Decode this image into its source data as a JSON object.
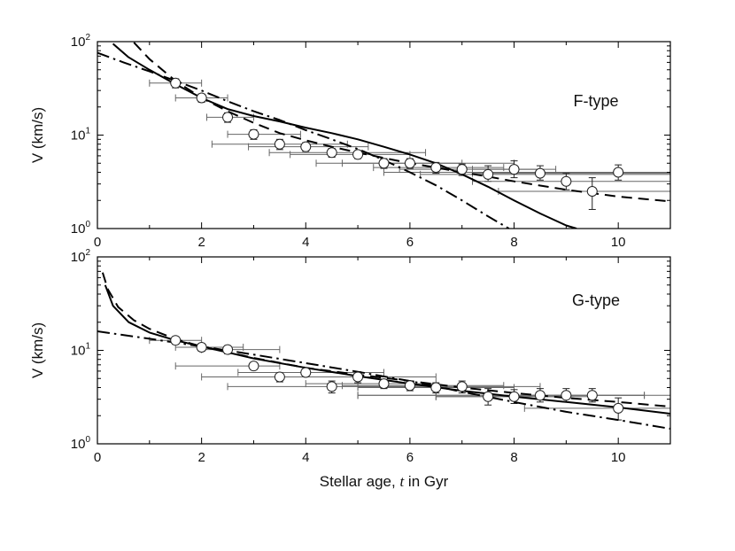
{
  "chart_data": [
    {
      "type": "scatter",
      "panel_label": "F-type",
      "xlabel": "",
      "ylabel": "V (km/s)",
      "xlim": [
        0,
        11
      ],
      "ylim": [
        1,
        100
      ],
      "yscale": "log",
      "x_ticks": [
        "0",
        "2",
        "4",
        "6",
        "8",
        "10"
      ],
      "y_ticks": [
        {
          "base": "10",
          "exp": "0"
        },
        {
          "base": "10",
          "exp": "1"
        },
        {
          "base": "10",
          "exp": "2"
        }
      ],
      "points": [
        {
          "x": 1.5,
          "y": 36,
          "xerr": [
            0.5,
            0.5
          ],
          "yerr": [
            4,
            4
          ]
        },
        {
          "x": 2.0,
          "y": 25,
          "xerr": [
            0.5,
            0.5
          ],
          "yerr": [
            2.5,
            2.5
          ]
        },
        {
          "x": 2.5,
          "y": 15.5,
          "xerr": [
            0.4,
            0.5
          ],
          "yerr": [
            1.8,
            1.8
          ]
        },
        {
          "x": 3.0,
          "y": 10.2,
          "xerr": [
            0.5,
            0.9
          ],
          "yerr": [
            1.2,
            1.2
          ]
        },
        {
          "x": 3.5,
          "y": 8.0,
          "xerr": [
            1.3,
            1.3
          ],
          "yerr": [
            1.0,
            1.0
          ]
        },
        {
          "x": 4.0,
          "y": 7.5,
          "xerr": [
            1.1,
            1.2
          ],
          "yerr": [
            0.8,
            0.8
          ]
        },
        {
          "x": 4.5,
          "y": 6.5,
          "xerr": [
            1.2,
            1.8
          ],
          "yerr": [
            0.7,
            0.7
          ]
        },
        {
          "x": 5.0,
          "y": 6.2,
          "xerr": [
            1.3,
            1.0
          ],
          "yerr": [
            0.6,
            0.6
          ]
        },
        {
          "x": 5.5,
          "y": 5.0,
          "xerr": [
            0.8,
            1.5
          ],
          "yerr": [
            0.6,
            0.6
          ]
        },
        {
          "x": 6.0,
          "y": 5.0,
          "xerr": [
            1.8,
            2.0
          ],
          "yerr": [
            0.6,
            0.6
          ]
        },
        {
          "x": 6.5,
          "y": 4.5,
          "xerr": [
            1.2,
            1.3
          ],
          "yerr": [
            0.6,
            0.6
          ]
        },
        {
          "x": 7.0,
          "y": 4.3,
          "xerr": [
            1.2,
            1.5
          ],
          "yerr": [
            0.6,
            0.6
          ]
        },
        {
          "x": 7.5,
          "y": 3.8,
          "xerr": [
            1.3,
            3.5
          ],
          "yerr": [
            0.6,
            0.9
          ]
        },
        {
          "x": 8.0,
          "y": 4.3,
          "xerr": [
            0.8,
            0.8
          ],
          "yerr": [
            0.8,
            1.0
          ]
        },
        {
          "x": 8.5,
          "y": 3.9,
          "xerr": [
            1.3,
            2.5
          ],
          "yerr": [
            0.6,
            0.8
          ]
        },
        {
          "x": 9.0,
          "y": 3.2,
          "xerr": [
            1.8,
            2.0
          ],
          "yerr": [
            0.6,
            0.7
          ]
        },
        {
          "x": 9.5,
          "y": 2.5,
          "xerr": [
            1.8,
            1.5
          ],
          "yerr": [
            0.9,
            1.0
          ]
        },
        {
          "x": 10.0,
          "y": 4.0,
          "xerr": [
            4.5,
            1.0
          ],
          "yerr": [
            0.7,
            0.8
          ]
        }
      ],
      "curves": [
        {
          "style": "solid",
          "x": [
            0.3,
            0.6,
            1.0,
            1.5,
            2.0,
            2.5,
            3.0,
            3.5,
            4.0,
            4.5,
            5.0,
            5.5,
            6.0,
            6.5,
            7.0,
            7.5,
            8.0,
            8.5,
            9.0,
            9.2
          ],
          "y": [
            95,
            68,
            50,
            35,
            25,
            19,
            16,
            14,
            12,
            10.5,
            9,
            7.5,
            6.2,
            5.0,
            3.8,
            2.8,
            2.0,
            1.45,
            1.08,
            1.0
          ]
        },
        {
          "style": "dashed",
          "x": [
            0.7,
            1.0,
            1.5,
            2.0,
            2.5,
            3.0,
            3.5,
            4.0,
            4.5,
            5.0,
            5.5,
            6.0,
            6.5,
            7.0,
            7.5,
            8.0,
            9.0,
            10.0,
            11.0
          ],
          "y": [
            98,
            65,
            38,
            25,
            18,
            13.5,
            10.5,
            8.8,
            7.5,
            6.5,
            5.7,
            5.0,
            4.5,
            4.0,
            3.6,
            3.2,
            2.6,
            2.2,
            1.95
          ]
        },
        {
          "style": "dashdot",
          "x": [
            0.0,
            0.5,
            1.0,
            1.5,
            2.0,
            2.5,
            3.0,
            3.5,
            4.0,
            4.5,
            5.0,
            5.5,
            6.0,
            6.5,
            7.0,
            7.5,
            7.9
          ],
          "y": [
            76,
            60,
            48,
            38,
            30,
            23,
            18,
            14.5,
            11.3,
            9.0,
            7.1,
            5.4,
            4.0,
            2.9,
            2.0,
            1.35,
            1.0
          ]
        }
      ]
    },
    {
      "type": "scatter",
      "panel_label": "G-type",
      "xlabel": "Stellar age, t in Gyr",
      "xlabel_parts": [
        "Stellar age, ",
        "t",
        " in Gyr"
      ],
      "ylabel": "V (km/s)",
      "xlim": [
        0,
        11
      ],
      "ylim": [
        1,
        100
      ],
      "yscale": "log",
      "x_ticks": [
        "0",
        "2",
        "4",
        "6",
        "8",
        "10"
      ],
      "y_ticks": [
        {
          "base": "10",
          "exp": "0"
        },
        {
          "base": "10",
          "exp": "1"
        },
        {
          "base": "10",
          "exp": "2"
        }
      ],
      "points": [
        {
          "x": 1.5,
          "y": 12.8,
          "xerr": [
            0.5,
            0.5
          ],
          "yerr": [
            1.2,
            1.2
          ]
        },
        {
          "x": 2.0,
          "y": 10.8,
          "xerr": [
            0.5,
            0.8
          ],
          "yerr": [
            1.0,
            1.0
          ]
        },
        {
          "x": 2.5,
          "y": 10.2,
          "xerr": [
            0.5,
            1.0
          ],
          "yerr": [
            1.0,
            1.0
          ]
        },
        {
          "x": 3.0,
          "y": 6.8,
          "xerr": [
            1.5,
            0.5
          ],
          "yerr": [
            0.6,
            0.6
          ]
        },
        {
          "x": 3.5,
          "y": 5.2,
          "xerr": [
            1.5,
            1.5
          ],
          "yerr": [
            0.6,
            0.6
          ]
        },
        {
          "x": 4.0,
          "y": 5.8,
          "xerr": [
            1.3,
            1.5
          ],
          "yerr": [
            0.5,
            0.5
          ]
        },
        {
          "x": 4.5,
          "y": 4.1,
          "xerr": [
            2.0,
            1.5
          ],
          "yerr": [
            0.6,
            0.6
          ]
        },
        {
          "x": 5.0,
          "y": 5.2,
          "xerr": [
            1.5,
            1.5
          ],
          "yerr": [
            0.7,
            0.7
          ]
        },
        {
          "x": 5.5,
          "y": 4.4,
          "xerr": [
            1.5,
            1.0
          ],
          "yerr": [
            0.5,
            0.5
          ]
        },
        {
          "x": 6.0,
          "y": 4.2,
          "xerr": [
            1.3,
            1.8
          ],
          "yerr": [
            0.5,
            0.5
          ]
        },
        {
          "x": 6.5,
          "y": 4.0,
          "xerr": [
            1.5,
            1.5
          ],
          "yerr": [
            0.5,
            0.5
          ]
        },
        {
          "x": 7.0,
          "y": 4.1,
          "xerr": [
            2.0,
            1.5
          ],
          "yerr": [
            0.6,
            0.6
          ]
        },
        {
          "x": 7.5,
          "y": 3.2,
          "xerr": [
            1.0,
            1.5
          ],
          "yerr": [
            0.6,
            0.7
          ]
        },
        {
          "x": 8.0,
          "y": 3.2,
          "xerr": [
            1.5,
            1.5
          ],
          "yerr": [
            0.5,
            0.6
          ]
        },
        {
          "x": 8.5,
          "y": 3.3,
          "xerr": [
            3.5,
            2.0
          ],
          "yerr": [
            0.5,
            0.6
          ]
        },
        {
          "x": 9.0,
          "y": 3.3,
          "xerr": [
            1.0,
            1.5
          ],
          "yerr": [
            0.5,
            0.6
          ]
        },
        {
          "x": 9.5,
          "y": 3.3,
          "xerr": [
            4.5,
            1.5
          ],
          "yerr": [
            0.5,
            0.6
          ]
        },
        {
          "x": 10.0,
          "y": 2.4,
          "xerr": [
            1.8,
            1.5
          ],
          "yerr": [
            0.6,
            0.7
          ]
        }
      ],
      "curves": [
        {
          "style": "solid",
          "x": [
            0.15,
            0.3,
            0.6,
            1.0,
            1.5,
            2.0,
            3.0,
            4.0,
            5.0,
            6.0,
            7.0,
            8.0,
            9.0,
            10.0,
            11.0
          ],
          "y": [
            50,
            30,
            20,
            15.5,
            12.8,
            11,
            8.2,
            6.5,
            5.3,
            4.4,
            3.7,
            3.2,
            2.8,
            2.45,
            2.1
          ]
        },
        {
          "style": "dashed",
          "x": [
            0.1,
            0.2,
            0.4,
            0.7,
            1.0,
            1.5,
            2.0,
            3.0,
            4.0,
            5.0,
            6.0,
            7.0,
            8.0,
            9.0,
            10.0,
            11.0
          ],
          "y": [
            68,
            45,
            29,
            21,
            17,
            13.2,
            11,
            8.3,
            6.5,
            5.5,
            4.7,
            4.0,
            3.5,
            3.1,
            2.8,
            2.5
          ]
        },
        {
          "style": "dashdot",
          "x": [
            0.0,
            1.0,
            2.0,
            3.0,
            4.0,
            5.0,
            6.0,
            7.0,
            8.0,
            9.0,
            10.0,
            11.0
          ],
          "y": [
            16,
            13.3,
            11,
            9.0,
            7.3,
            5.9,
            4.7,
            3.6,
            2.8,
            2.2,
            1.8,
            1.45
          ]
        }
      ]
    }
  ]
}
